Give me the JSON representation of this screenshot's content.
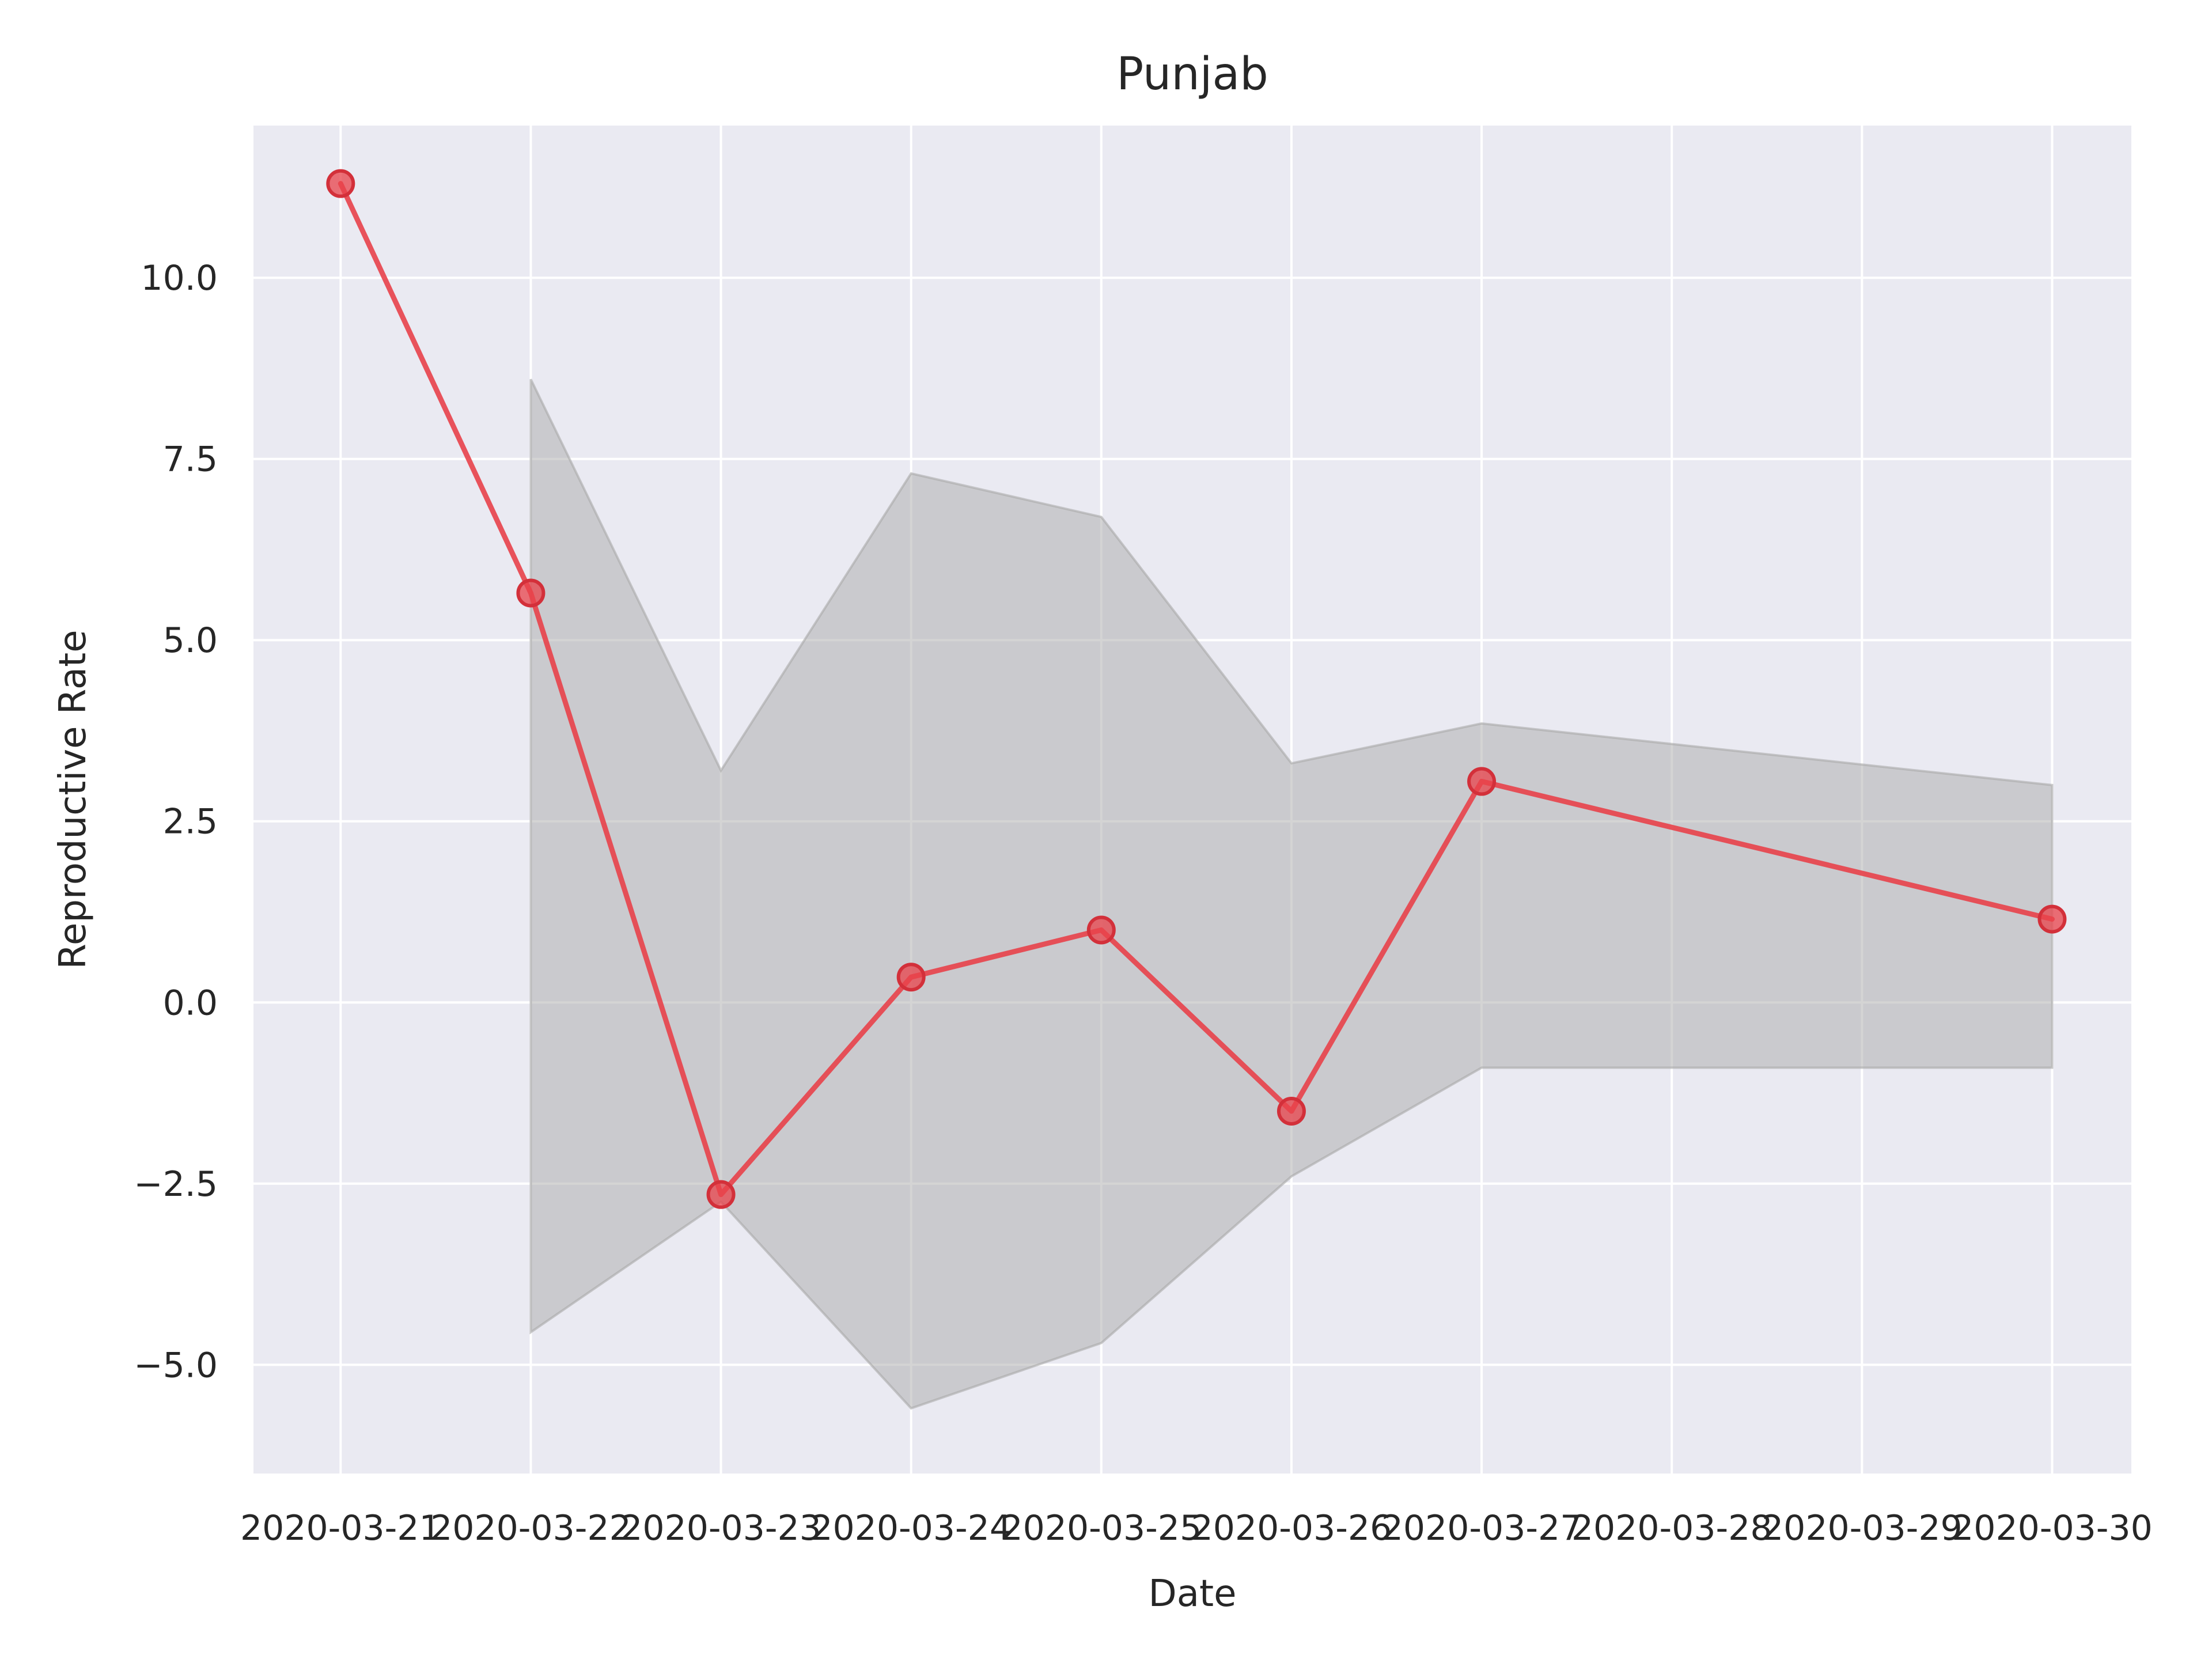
{
  "chart_data": {
    "type": "line",
    "title": "Punjab",
    "xlabel": "Date",
    "ylabel": "Reproductive Rate",
    "x_ticks": [
      "2020-03-21",
      "2020-03-22",
      "2020-03-23",
      "2020-03-24",
      "2020-03-25",
      "2020-03-26",
      "2020-03-27",
      "2020-03-28",
      "2020-03-29",
      "2020-03-30"
    ],
    "y_ticks": [
      -5.0,
      -2.5,
      0.0,
      2.5,
      5.0,
      7.5,
      10.0
    ],
    "y_tick_labels": [
      "−5.0",
      "−2.5",
      "0.0",
      "2.5",
      "5.0",
      "7.5",
      "10.0"
    ],
    "ylim": [
      -6.5,
      12.1
    ],
    "xlim": [
      "2020-03-20T13:00",
      "2020-03-30T10:00"
    ],
    "grid": true,
    "background_color": "#eaeaf2",
    "series": [
      {
        "color": "#e8414a",
        "points": [
          {
            "x": "2020-03-21",
            "y": 11.3
          },
          {
            "x": "2020-03-22",
            "y": 5.65
          },
          {
            "x": "2020-03-23",
            "y": -2.65
          },
          {
            "x": "2020-03-24",
            "y": 0.35
          },
          {
            "x": "2020-03-25",
            "y": 1.0
          },
          {
            "x": "2020-03-26",
            "y": -1.5
          },
          {
            "x": "2020-03-27",
            "y": 3.05
          },
          {
            "x": "2020-03-30",
            "y": 1.15
          }
        ]
      }
    ],
    "band": {
      "color": "#a9a9a9",
      "points": [
        {
          "x": "2020-03-22",
          "lower": -4.55,
          "upper": 8.6
        },
        {
          "x": "2020-03-23",
          "lower": -2.75,
          "upper": 3.2
        },
        {
          "x": "2020-03-24",
          "lower": -5.6,
          "upper": 7.3
        },
        {
          "x": "2020-03-25",
          "lower": -4.7,
          "upper": 6.7
        },
        {
          "x": "2020-03-26",
          "lower": -2.4,
          "upper": 3.3
        },
        {
          "x": "2020-03-27",
          "lower": -0.9,
          "upper": 3.85
        },
        {
          "x": "2020-03-30",
          "lower": -0.9,
          "upper": 3.0
        }
      ]
    }
  }
}
